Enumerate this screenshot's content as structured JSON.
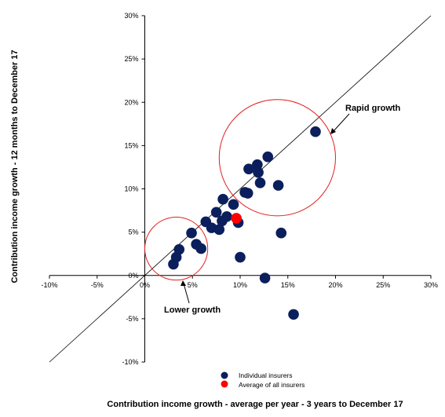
{
  "chart_data": {
    "type": "scatter",
    "xlabel": "Contribution income growth - average per year - 3 years to December 17",
    "ylabel": "Contribution income growth - 12 months to December 17",
    "xlim": [
      -10,
      30
    ],
    "ylim": [
      -10,
      30
    ],
    "x_ticks": [
      -10,
      -5,
      0,
      5,
      10,
      15,
      20,
      25,
      30
    ],
    "y_ticks": [
      -10,
      -5,
      0,
      5,
      10,
      15,
      20,
      25,
      30
    ],
    "x_tick_labels": [
      "-10%",
      "-5%",
      "0%",
      "5%",
      "10%",
      "15%",
      "20%",
      "25%",
      "30%"
    ],
    "y_tick_labels": [
      "-10%",
      "-5%",
      "0%",
      "5%",
      "10%",
      "15%",
      "20%",
      "25%",
      "30%"
    ],
    "grid": false,
    "reference_line": {
      "type": "y=x"
    },
    "series": [
      {
        "name": "Individual insurers",
        "color": "#0a1f5c",
        "points": [
          [
            3.0,
            1.3
          ],
          [
            3.3,
            2.1
          ],
          [
            3.6,
            3.0
          ],
          [
            4.9,
            4.9
          ],
          [
            5.4,
            3.6
          ],
          [
            5.9,
            3.1
          ],
          [
            6.4,
            6.2
          ],
          [
            7.0,
            5.5
          ],
          [
            7.5,
            7.3
          ],
          [
            7.8,
            5.3
          ],
          [
            8.1,
            6.3
          ],
          [
            8.2,
            8.8
          ],
          [
            8.6,
            6.8
          ],
          [
            9.3,
            8.2
          ],
          [
            9.8,
            6.1
          ],
          [
            10.0,
            2.1
          ],
          [
            10.5,
            9.6
          ],
          [
            10.8,
            9.5
          ],
          [
            10.9,
            12.3
          ],
          [
            11.8,
            12.8
          ],
          [
            11.9,
            11.9
          ],
          [
            12.1,
            10.7
          ],
          [
            12.6,
            -0.3
          ],
          [
            12.9,
            13.7
          ],
          [
            14.0,
            10.4
          ],
          [
            14.3,
            4.9
          ],
          [
            15.6,
            -4.5
          ],
          [
            17.9,
            16.6
          ]
        ]
      },
      {
        "name": "Average of all insurers",
        "color": "#ff0000",
        "points": [
          [
            9.6,
            6.6
          ]
        ]
      }
    ],
    "annotations": [
      {
        "text": "Rapid growth",
        "circle": {
          "cx": 13.9,
          "cy": 13.6,
          "r": 6.1
        }
      },
      {
        "text": "Lower growth",
        "circle": {
          "cx": 3.3,
          "cy": 3.1,
          "r": 3.3
        }
      }
    ]
  },
  "legend": {
    "items": [
      {
        "label": "Individual insurers",
        "color": "#0a1f5c"
      },
      {
        "label": "Average of all insurers",
        "color": "#ff0000"
      }
    ]
  },
  "annotations": {
    "rapid_label": "Rapid growth",
    "lower_label": "Lower growth"
  },
  "colors": {
    "circle": "#e02020",
    "axis": "#000000"
  }
}
